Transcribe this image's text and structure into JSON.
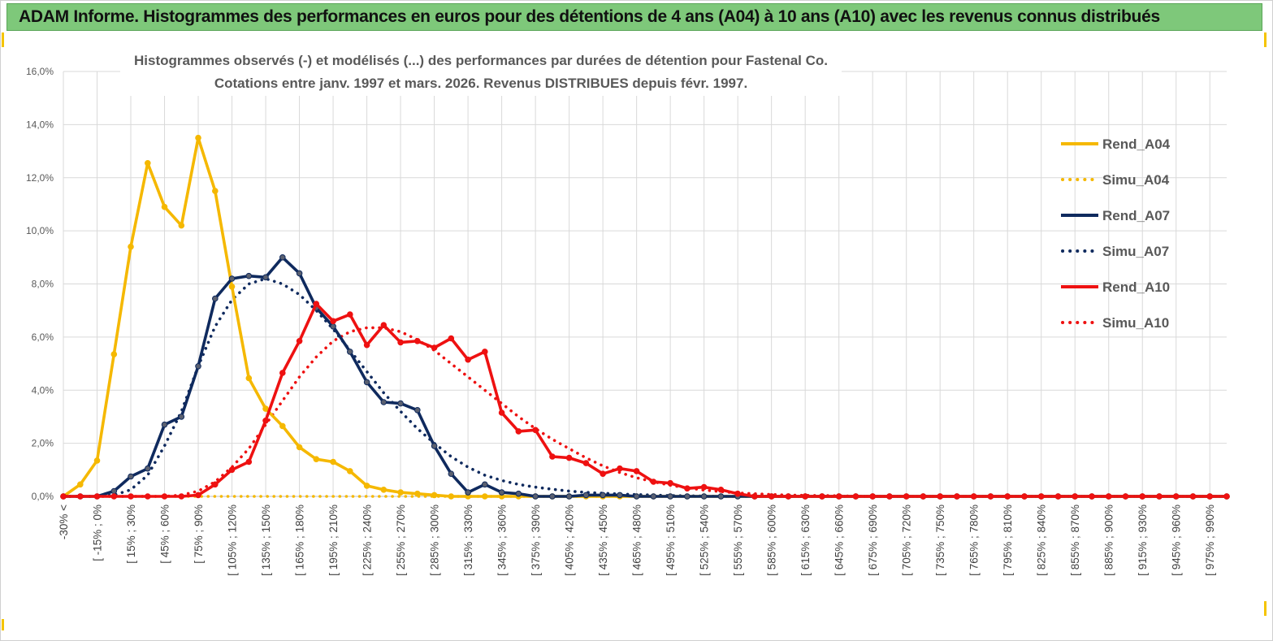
{
  "banner": {
    "title": "ADAM Informe. Histogrammes des performances en euros pour des détentions de 4 ans (A04) à 10 ans (A10) avec les revenus connus distribués"
  },
  "colors": {
    "banner_bg": "#7ec87a",
    "a04": "#f5b800",
    "a07": "#0f2a5e",
    "a10": "#ee1111",
    "grid": "#d9d9d9"
  },
  "chart_data": {
    "type": "line",
    "title": "Histogrammes observés (-) et modélisés (...) des performances par durées de détention pour Fastenal Co.",
    "subtitle": "Cotations entre janv. 1997 et mars. 2026. Revenus DISTRIBUES depuis févr. 1997.",
    "ylim": [
      0,
      16
    ],
    "y_ticks": [
      "0,0%",
      "2,0%",
      "4,0%",
      "6,0%",
      "8,0%",
      "10,0%",
      "12,0%",
      "14,0%",
      "16,0%"
    ],
    "x_tick_labels": [
      "-30% <",
      "[ -15% ; 0%",
      "[ 15% ; 30%",
      "[ 45% ; 60%",
      "[ 75% ; 90%",
      "[ 105% ; 120%",
      "[ 135% ; 150%",
      "[ 165% ; 180%",
      "[ 195% ; 210%",
      "[ 225% ; 240%",
      "[ 255% ; 270%",
      "[ 285% ; 300%",
      "[ 315% ; 330%",
      "[ 345% ; 360%",
      "[ 375% ; 390%",
      "[ 405% ; 420%",
      "[ 435% ; 450%",
      "[ 465% ; 480%",
      "[ 495% ; 510%",
      "[ 525% ; 540%",
      "[ 555% ; 570%",
      "[ 585% ; 600%",
      "[ 615% ; 630%",
      "[ 645% ; 660%",
      "[ 675% ; 690%",
      "[ 705% ; 720%",
      "[ 735% ; 750%",
      "[ 765% ; 780%",
      "[ 795% ; 810%",
      "[ 825% ; 840%",
      "[ 855% ; 870%",
      "[ 885% ; 900%",
      "[ 915% ; 930%",
      "[ 945% ; 960%",
      "[ 975% ; 990%"
    ],
    "grid": true,
    "legend_position": "right",
    "series": [
      {
        "name": "Rend_A04",
        "style": "solid",
        "color": "#f5b800",
        "values": [
          0,
          0.45,
          1.35,
          5.35,
          9.4,
          12.55,
          10.9,
          10.2,
          13.5,
          11.5,
          7.9,
          4.45,
          3.3,
          2.65,
          1.85,
          1.4,
          1.3,
          0.95,
          0.4,
          0.25,
          0.15,
          0.1,
          0.05,
          0,
          0,
          0,
          0,
          0
        ]
      },
      {
        "name": "Simu_A04",
        "style": "dotted",
        "color": "#f5b800",
        "values": [
          0,
          0,
          0,
          0,
          0,
          0,
          0,
          0,
          0,
          0,
          0,
          0,
          0,
          0,
          0,
          0,
          0,
          0,
          0,
          0,
          0,
          0,
          0,
          0,
          0,
          0,
          0,
          0,
          0,
          0,
          0,
          0
        ]
      },
      {
        "name": "Rend_A07",
        "style": "solid",
        "color": "#0f2a5e",
        "values": [
          0,
          0,
          0,
          0.2,
          0.75,
          1.05,
          2.7,
          3.0,
          4.9,
          7.45,
          8.2,
          8.3,
          8.25,
          9.0,
          8.4,
          7.1,
          6.4,
          5.45,
          4.3,
          3.55,
          3.5,
          3.25,
          1.9,
          0.85,
          0.15,
          0.45,
          0.15,
          0.1,
          0,
          0,
          0,
          0.05,
          0.05,
          0.05,
          0,
          0,
          0,
          0,
          0,
          0,
          0,
          0,
          0,
          0,
          0,
          0,
          0,
          0,
          0,
          0,
          0,
          0,
          0,
          0,
          0,
          0,
          0,
          0,
          0,
          0,
          0,
          0,
          0,
          0,
          0,
          0,
          0,
          0,
          0,
          0
        ]
      },
      {
        "name": "Simu_A07",
        "style": "dotted",
        "color": "#0f2a5e",
        "values": [
          0,
          0,
          0,
          0.05,
          0.25,
          0.8,
          1.9,
          3.2,
          4.9,
          6.4,
          7.4,
          8.0,
          8.2,
          8.0,
          7.6,
          7.0,
          6.3,
          5.5,
          4.7,
          3.9,
          3.2,
          2.55,
          2.0,
          1.5,
          1.1,
          0.8,
          0.6,
          0.45,
          0.35,
          0.27,
          0.2,
          0.15,
          0.12,
          0.09,
          0.07,
          0.05,
          0.03,
          0.02,
          0.01,
          0,
          0,
          0,
          0,
          0,
          0,
          0,
          0,
          0,
          0,
          0,
          0,
          0,
          0,
          0,
          0,
          0,
          0,
          0,
          0,
          0,
          0,
          0,
          0,
          0,
          0,
          0,
          0,
          0,
          0,
          0
        ]
      },
      {
        "name": "Rend_A10",
        "style": "solid",
        "color": "#ee1111",
        "values": [
          0,
          0,
          0,
          0,
          0,
          0,
          0,
          0,
          0.05,
          0.45,
          1.0,
          1.3,
          2.85,
          4.65,
          5.85,
          7.25,
          6.6,
          6.85,
          5.7,
          6.45,
          5.8,
          5.85,
          5.6,
          5.95,
          5.15,
          5.45,
          3.15,
          2.45,
          2.5,
          1.5,
          1.45,
          1.25,
          0.85,
          1.05,
          0.95,
          0.55,
          0.5,
          0.3,
          0.35,
          0.25,
          0.1,
          0,
          0,
          0,
          0,
          0,
          0,
          0,
          0,
          0,
          0,
          0,
          0,
          0,
          0,
          0,
          0,
          0,
          0,
          0,
          0,
          0,
          0,
          0,
          0,
          0,
          0,
          0,
          0,
          0
        ]
      },
      {
        "name": "Simu_A10",
        "style": "dotted",
        "color": "#ee1111",
        "values": [
          0,
          0,
          0,
          0,
          0,
          0,
          0,
          0.05,
          0.2,
          0.55,
          1.1,
          1.8,
          2.7,
          3.6,
          4.5,
          5.25,
          5.85,
          6.2,
          6.35,
          6.35,
          6.2,
          5.9,
          5.5,
          5.0,
          4.5,
          4.0,
          3.5,
          3.0,
          2.55,
          2.15,
          1.8,
          1.45,
          1.15,
          0.9,
          0.7,
          0.55,
          0.42,
          0.32,
          0.24,
          0.18,
          0.13,
          0.1,
          0.07,
          0.05,
          0.04,
          0.03,
          0.02,
          0.01,
          0,
          0,
          0,
          0,
          0,
          0,
          0,
          0,
          0,
          0,
          0,
          0,
          0,
          0,
          0,
          0,
          0,
          0,
          0,
          0,
          0,
          0
        ]
      }
    ]
  }
}
